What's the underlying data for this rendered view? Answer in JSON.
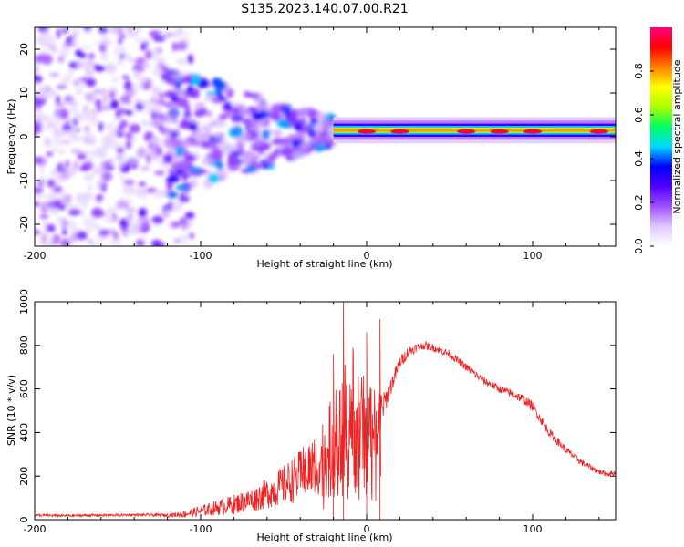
{
  "title": "S135.2023.140.07.00.R21",
  "chart_data": [
    {
      "type": "heatmap",
      "xlabel": "Height of straight line (km)",
      "ylabel": "Frequency (Hz)",
      "xlim": [
        -200,
        150
      ],
      "ylim": [
        -25,
        25
      ],
      "x_ticks": [
        -200,
        -100,
        0,
        100
      ],
      "y_ticks": [
        -20,
        -10,
        0,
        10,
        20
      ],
      "colorbar": {
        "label": "Normalized spectral amplitude",
        "range": [
          0,
          1
        ],
        "ticks": [
          0.0,
          0.2,
          0.4,
          0.6,
          0.8
        ],
        "colors": [
          "#ffffff",
          "#e0c8ff",
          "#a050ff",
          "#5000ff",
          "#0000ff",
          "#00d8ff",
          "#00ff60",
          "#aaff00",
          "#ffff00",
          "#ff8000",
          "#ff0000",
          "#ff0080"
        ]
      },
      "structure": {
        "scatter_region_x": [
          -200,
          -120
        ],
        "scatter_region_freq_spread_hz": 25,
        "transition_region_x": [
          -120,
          -20
        ],
        "steady_line_x": [
          -20,
          150
        ],
        "steady_line_freq_hz": 1.5,
        "peak_amplitude_near_km": [
          0,
          20,
          60,
          80,
          100,
          140
        ]
      }
    },
    {
      "type": "line",
      "xlabel": "Height of straight line (km)",
      "ylabel": "SNR (10 * v/v)",
      "xlim": [
        -200,
        150
      ],
      "ylim": [
        0,
        1000
      ],
      "x_ticks": [
        -200,
        -100,
        0,
        100
      ],
      "y_ticks": [
        0,
        200,
        400,
        600,
        800,
        1000
      ],
      "line_color": "#ee2222",
      "series": [
        {
          "x": [
            -200,
            -180,
            -160,
            -140,
            -120,
            -110,
            -100,
            -90,
            -80,
            -70,
            -60,
            -50,
            -40,
            -30,
            -25,
            -20,
            -15,
            -12,
            -10,
            -5,
            0,
            5,
            10,
            15,
            20,
            25,
            30,
            35,
            40,
            50,
            60,
            70,
            80,
            90,
            95,
            100,
            105,
            110,
            120,
            130,
            140,
            145,
            150
          ],
          "values": [
            20,
            18,
            20,
            22,
            20,
            25,
            40,
            55,
            70,
            90,
            120,
            160,
            200,
            260,
            300,
            330,
            360,
            420,
            480,
            420,
            430,
            450,
            520,
            620,
            720,
            770,
            790,
            800,
            790,
            760,
            700,
            640,
            600,
            570,
            550,
            520,
            460,
            400,
            320,
            260,
            220,
            210,
            215
          ],
          "noise_amplitude": [
            6,
            6,
            6,
            6,
            8,
            15,
            25,
            35,
            45,
            55,
            70,
            90,
            120,
            150,
            190,
            250,
            300,
            350,
            380,
            300,
            200,
            150,
            60,
            40,
            30,
            25,
            20,
            18,
            18,
            18,
            18,
            18,
            18,
            20,
            22,
            22,
            22,
            20,
            18,
            15,
            12,
            12,
            12
          ],
          "spike_peaks": [
            {
              "x": -14,
              "y": 1000
            },
            {
              "x": 8,
              "y": 920
            },
            {
              "x": -20,
              "y": 760
            },
            {
              "x": 0,
              "y": 860
            }
          ]
        }
      ]
    }
  ]
}
